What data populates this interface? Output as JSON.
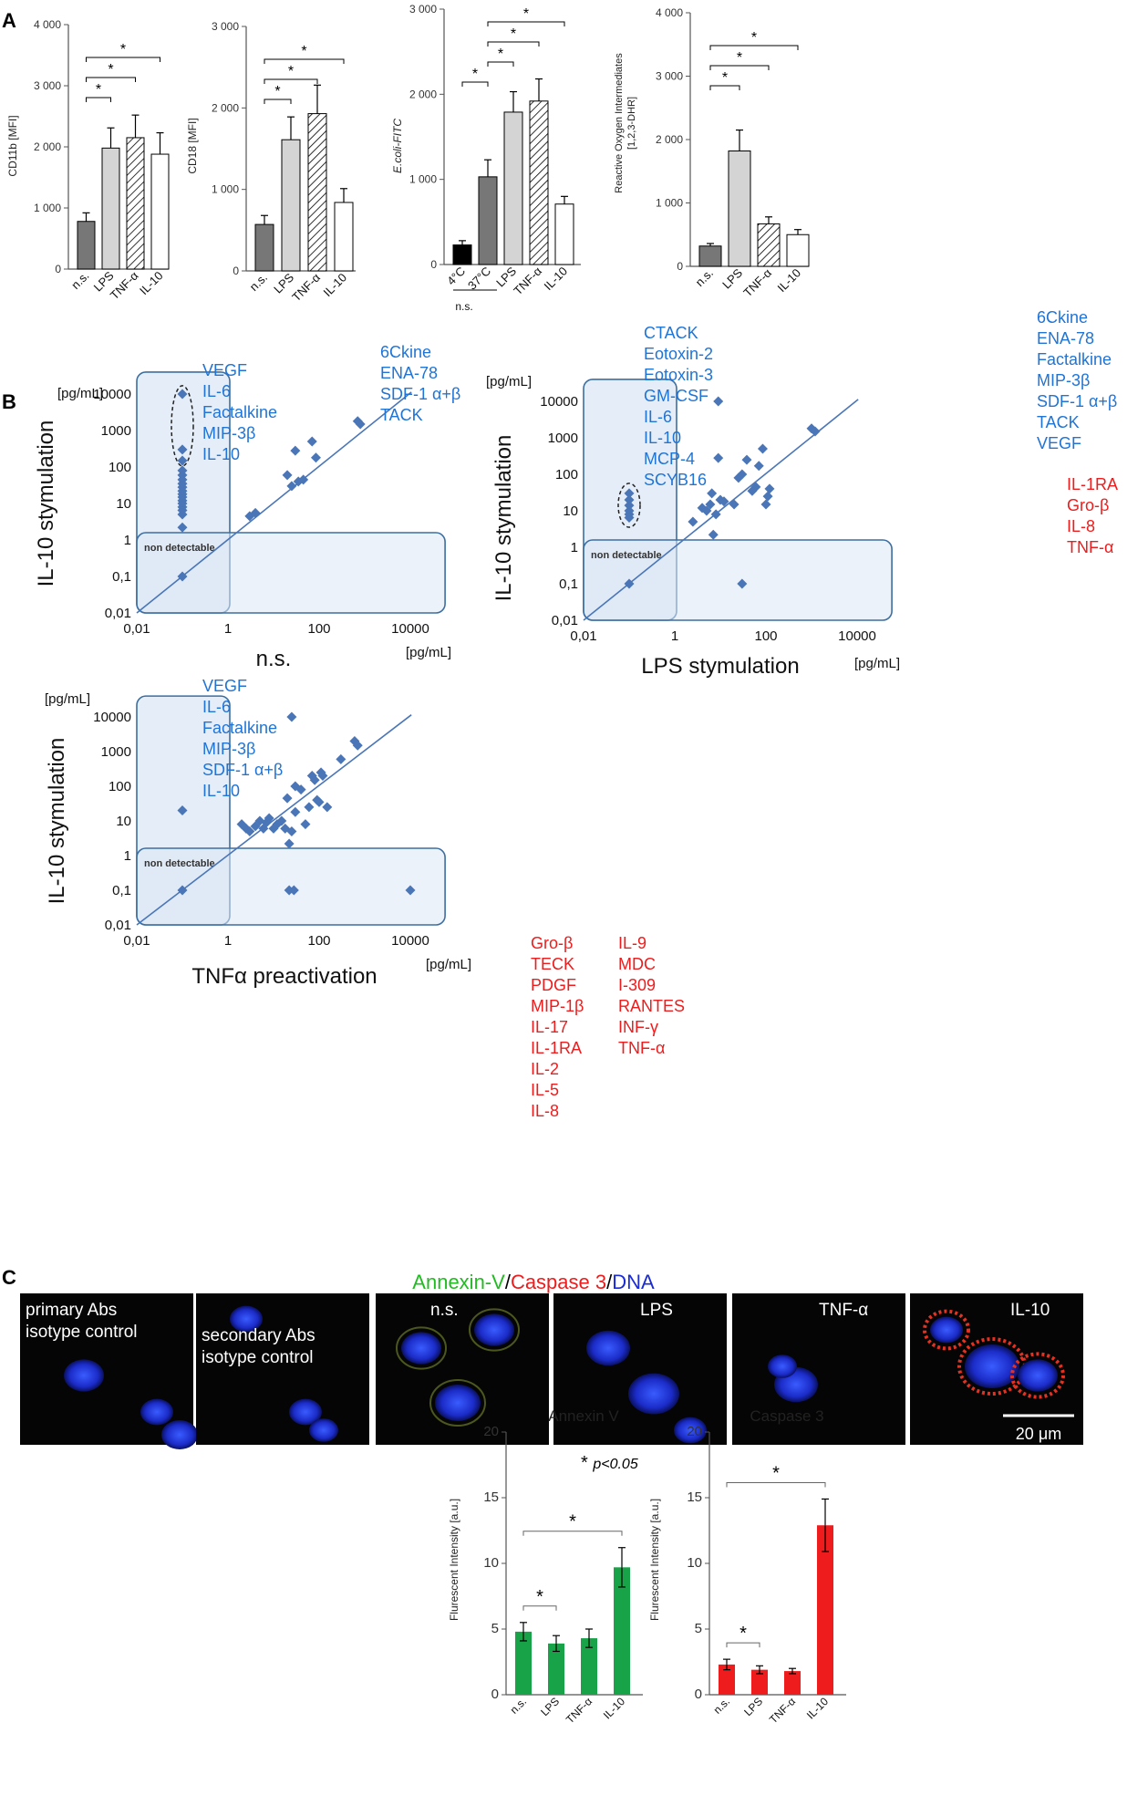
{
  "panel_labels": {
    "a": "A",
    "b": "B",
    "c": "C"
  },
  "chart_data": [
    {
      "id": "a1",
      "type": "bar",
      "ylabel": "CD11b [MFI]",
      "ylim": [
        0,
        4000
      ],
      "ticks": [
        0,
        1000,
        2000,
        3000,
        4000
      ],
      "tick_labels": [
        "0",
        "1 000",
        "2 000",
        "3 000",
        "4 000"
      ],
      "categories": [
        "n.s.",
        "LPS",
        "TNF-α",
        "IL-10"
      ],
      "values": [
        780,
        1980,
        2150,
        1880
      ],
      "errors": [
        140,
        330,
        370,
        350
      ],
      "fills": [
        "#777777",
        "#d4d4d4",
        "hatch",
        "#ffffff"
      ],
      "significance": [
        {
          "from": 0,
          "to": 1,
          "label": "*"
        },
        {
          "from": 0,
          "to": 2,
          "label": "*"
        },
        {
          "from": 0,
          "to": 3,
          "label": "*"
        }
      ]
    },
    {
      "id": "a2",
      "type": "bar",
      "ylabel": "CD18 [MFI]",
      "ylim": [
        0,
        3000
      ],
      "ticks": [
        0,
        1000,
        2000,
        3000
      ],
      "tick_labels": [
        "0",
        "1 000",
        "2 000",
        "3 000"
      ],
      "categories": [
        "n.s.",
        "LPS",
        "TNF-α",
        "IL-10"
      ],
      "values": [
        570,
        1610,
        1930,
        840
      ],
      "errors": [
        110,
        280,
        350,
        170
      ],
      "fills": [
        "#777777",
        "#d4d4d4",
        "hatch",
        "#ffffff"
      ],
      "significance": [
        {
          "from": 0,
          "to": 1,
          "label": "*"
        },
        {
          "from": 0,
          "to": 2,
          "label": "*"
        },
        {
          "from": 0,
          "to": 3,
          "label": "*"
        }
      ]
    },
    {
      "id": "a3",
      "type": "bar",
      "ylabel": "E.coli-FITC",
      "ylim": [
        0,
        3000
      ],
      "ticks": [
        0,
        1000,
        2000,
        3000
      ],
      "tick_labels": [
        "0",
        "1 000",
        "2 000",
        "3 000"
      ],
      "categories": [
        "4°C",
        "37°C",
        "LPS",
        "TNF-α",
        "IL-10"
      ],
      "group_label": "n.s.",
      "values": [
        230,
        1030,
        1790,
        1920,
        710
      ],
      "errors": [
        50,
        200,
        240,
        260,
        90
      ],
      "fills": [
        "#000000",
        "#777777",
        "#d4d4d4",
        "hatch",
        "#ffffff"
      ],
      "significance": [
        {
          "from": 0,
          "to": 1,
          "label": "*"
        },
        {
          "from": 1,
          "to": 2,
          "label": "*"
        },
        {
          "from": 1,
          "to": 3,
          "label": "*"
        },
        {
          "from": 1,
          "to": 4,
          "label": "*"
        }
      ]
    },
    {
      "id": "a4",
      "type": "bar",
      "ylabel": "Reactive Oxygen Intermediates",
      "ylabel2": "[1,2,3-DHR]",
      "ylim": [
        0,
        4000
      ],
      "ticks": [
        0,
        1000,
        2000,
        3000,
        4000
      ],
      "tick_labels": [
        "0",
        "1 000",
        "2 000",
        "3 000",
        "4 000"
      ],
      "categories": [
        "n.s.",
        "LPS",
        "TNF-α",
        "IL-10"
      ],
      "values": [
        320,
        1820,
        670,
        500
      ],
      "errors": [
        40,
        330,
        110,
        80
      ],
      "fills": [
        "#777777",
        "#d4d4d4",
        "hatch",
        "#ffffff"
      ],
      "significance": [
        {
          "from": 0,
          "to": 1,
          "label": "*"
        },
        {
          "from": 0,
          "to": 2,
          "label": "*"
        },
        {
          "from": 0,
          "to": 3,
          "label": "*"
        }
      ]
    },
    {
      "id": "b1",
      "type": "scatter",
      "scale": "log",
      "xlabel": "n.s.",
      "ylabel": "IL-10 stymulation",
      "xunit": "[pg/mL]",
      "yunit": "[pg/mL]",
      "ticks": [
        0.01,
        1,
        100,
        10000
      ],
      "yticks": [
        0.01,
        0.1,
        1,
        10,
        100,
        1000,
        10000
      ],
      "xtick_labels": [
        "0,01",
        "1",
        "100",
        "10000"
      ],
      "ytick_labels": [
        "0,01",
        "0,1",
        "1",
        "10",
        "100",
        "1000",
        "10000"
      ],
      "non_detectable": "non detectable",
      "points": [
        [
          0.1,
          10000
        ],
        [
          0.1,
          300
        ],
        [
          0.1,
          150
        ],
        [
          0.1,
          80
        ],
        [
          0.1,
          60
        ],
        [
          0.1,
          45
        ],
        [
          0.1,
          35
        ],
        [
          0.1,
          28
        ],
        [
          0.1,
          22
        ],
        [
          0.1,
          18
        ],
        [
          0.1,
          15
        ],
        [
          0.1,
          12
        ],
        [
          0.1,
          10
        ],
        [
          0.1,
          8
        ],
        [
          0.1,
          6.5
        ],
        [
          0.1,
          5
        ],
        [
          0.1,
          2.2
        ],
        [
          0.1,
          0.1
        ],
        [
          3,
          4.5
        ],
        [
          4,
          5.5
        ],
        [
          20,
          60
        ],
        [
          25,
          30
        ],
        [
          30,
          280
        ],
        [
          35,
          40
        ],
        [
          45,
          45
        ],
        [
          70,
          500
        ],
        [
          85,
          180
        ],
        [
          700,
          1800
        ],
        [
          800,
          1500
        ]
      ],
      "ellipse": {
        "x": 0.1,
        "ylow": 150,
        "yhigh": 12000
      },
      "annotations_left": [
        "VEGF",
        "IL-6",
        "Factalkine",
        "MIP-3β",
        "IL-10"
      ],
      "annotations_right": [
        "6Ckine",
        "ENA-78",
        "SDF-1 α+β",
        "TACK"
      ]
    },
    {
      "id": "b2",
      "type": "scatter",
      "scale": "log",
      "xlabel": "LPS stymulation",
      "ylabel": "IL-10 stymulation",
      "xunit": "[pg/mL]",
      "yunit": "[pg/mL]",
      "ticks": [
        0.01,
        1,
        100,
        10000
      ],
      "yticks": [
        0.01,
        0.1,
        1,
        10,
        100,
        1000,
        10000
      ],
      "xtick_labels": [
        "0,01",
        "1",
        "100",
        "10000"
      ],
      "ytick_labels": [
        "0,01",
        "0,1",
        "1",
        "10",
        "100",
        "1000",
        "10000"
      ],
      "non_detectable": "non detectable",
      "points": [
        [
          0.1,
          30
        ],
        [
          0.1,
          20
        ],
        [
          0.1,
          14
        ],
        [
          0.1,
          10
        ],
        [
          0.1,
          8
        ],
        [
          0.1,
          6.5
        ],
        [
          0.1,
          0.1
        ],
        [
          2.5,
          5
        ],
        [
          4,
          12
        ],
        [
          5,
          10
        ],
        [
          6,
          15
        ],
        [
          6.5,
          30
        ],
        [
          7,
          2.2
        ],
        [
          8,
          8
        ],
        [
          9,
          10000
        ],
        [
          9,
          280
        ],
        [
          10,
          20
        ],
        [
          12,
          18
        ],
        [
          20,
          15
        ],
        [
          25,
          80
        ],
        [
          30,
          100
        ],
        [
          38,
          250
        ],
        [
          50,
          35
        ],
        [
          60,
          45
        ],
        [
          70,
          170
        ],
        [
          85,
          500
        ],
        [
          100,
          15
        ],
        [
          110,
          25
        ],
        [
          120,
          40
        ],
        [
          30,
          0.1
        ],
        [
          1000,
          1800
        ],
        [
          1200,
          1500
        ]
      ],
      "ellipse": {
        "x": 0.1,
        "ylow": 5,
        "yhigh": 40
      },
      "annotations_left": [
        "CTACK",
        "Eotoxin-2",
        "Eotoxin-3",
        "GM-CSF",
        "IL-6",
        "IL-10",
        "MCP-4",
        "SCYB16"
      ],
      "annotations_right": [
        "6Ckine",
        "ENA-78",
        "Factalkine",
        "MIP-3β",
        "SDF-1 α+β",
        "TACK",
        "VEGF"
      ],
      "annotations_red": [
        "IL-1RA",
        "Gro-β",
        "IL-8",
        "TNF-α"
      ]
    },
    {
      "id": "b3",
      "type": "scatter",
      "scale": "log",
      "xlabel": "TNFα preactivation",
      "ylabel": "IL-10 stymulation",
      "xunit": "[pg/mL]",
      "yunit": "[pg/mL]",
      "ticks": [
        0.01,
        1,
        100,
        10000
      ],
      "yticks": [
        0.01,
        0.1,
        1,
        10,
        100,
        1000,
        10000
      ],
      "xtick_labels": [
        "0,01",
        "1",
        "100",
        "10000"
      ],
      "ytick_labels": [
        "0,01",
        "0,1",
        "1",
        "10",
        "100",
        "1000",
        "10000"
      ],
      "non_detectable": "non detectable",
      "points": [
        [
          0.1,
          20
        ],
        [
          0.1,
          0.1
        ],
        [
          2,
          8
        ],
        [
          2.5,
          6
        ],
        [
          3,
          5
        ],
        [
          4,
          7
        ],
        [
          5,
          10
        ],
        [
          6,
          6
        ],
        [
          7,
          9
        ],
        [
          8,
          12
        ],
        [
          10,
          6
        ],
        [
          12,
          8
        ],
        [
          15,
          10
        ],
        [
          18,
          6
        ],
        [
          20,
          45
        ],
        [
          22,
          2.2
        ],
        [
          25,
          10000
        ],
        [
          25,
          5
        ],
        [
          30,
          100
        ],
        [
          30,
          18
        ],
        [
          40,
          80
        ],
        [
          50,
          8
        ],
        [
          60,
          25
        ],
        [
          70,
          200
        ],
        [
          80,
          150
        ],
        [
          90,
          40
        ],
        [
          100,
          35
        ],
        [
          110,
          250
        ],
        [
          120,
          200
        ],
        [
          150,
          25
        ],
        [
          300,
          600
        ],
        [
          600,
          2000
        ],
        [
          700,
          1500
        ],
        [
          22,
          0.1
        ],
        [
          28,
          0.1
        ],
        [
          10000,
          0.1
        ]
      ],
      "annotations_left": [
        "VEGF",
        "IL-6",
        "Factalkine",
        "MIP-3β",
        "SDF-1 α+β",
        "IL-10"
      ],
      "annotations_red_col1": [
        "Gro-β",
        "TECK",
        "PDGF",
        "MIP-1β",
        "IL-17",
        "IL-1RA",
        "IL-2",
        "IL-5",
        "IL-8"
      ],
      "annotations_red_col2": [
        "IL-9",
        "MDC",
        "I-309",
        "RANTES",
        "INF-γ",
        "TNF-α"
      ]
    },
    {
      "id": "c1",
      "type": "bar",
      "title": "Annexin V",
      "ylabel": "Flurescent Intensity [a.u.]",
      "ylim": [
        0,
        20
      ],
      "ticks": [
        0,
        5,
        10,
        15,
        20
      ],
      "tick_labels": [
        "0",
        "5",
        "10",
        "15",
        "20"
      ],
      "categories": [
        "n.s.",
        "LPS",
        "TNF-α",
        "IL-10"
      ],
      "values": [
        4.8,
        3.9,
        4.3,
        9.7
      ],
      "errors": [
        0.7,
        0.6,
        0.7,
        1.5
      ],
      "fills": [
        "#18a348",
        "#18a348",
        "#18a348",
        "#18a348"
      ],
      "significance": [
        {
          "from": 0,
          "to": 1,
          "label": "*"
        },
        {
          "from": 0,
          "to": 3,
          "label": "*"
        }
      ],
      "legend_star": "*",
      "legend_text": "p<0.05"
    },
    {
      "id": "c2",
      "type": "bar",
      "title": "Caspase 3",
      "ylabel": "Flurescent Intensity [a.u.]",
      "ylim": [
        0,
        20
      ],
      "ticks": [
        0,
        5,
        10,
        15,
        20
      ],
      "tick_labels": [
        "0",
        "5",
        "10",
        "15",
        "20"
      ],
      "categories": [
        "n.s.",
        "LPS",
        "TNF-α",
        "IL-10"
      ],
      "values": [
        2.3,
        1.9,
        1.8,
        12.9
      ],
      "errors": [
        0.4,
        0.3,
        0.2,
        2.0
      ],
      "fills": [
        "#ee1c1c",
        "#ee1c1c",
        "#ee1c1c",
        "#ee1c1c"
      ],
      "significance": [
        {
          "from": 0,
          "to": 1,
          "label": "*"
        },
        {
          "from": 0,
          "to": 3,
          "label": "*"
        }
      ]
    }
  ],
  "micrographs": {
    "title_parts": [
      {
        "text": "Annexin-V",
        "color": "#22bb22"
      },
      {
        "text": "/",
        "color": "#000000"
      },
      {
        "text": "Caspase 3",
        "color": "#ee1c1c"
      },
      {
        "text": "/",
        "color": "#000000"
      },
      {
        "text": "DNA",
        "color": "#1a2bd8"
      }
    ],
    "images": [
      {
        "label": "primary Abs isotype control",
        "lines": [
          "primary Abs",
          "isotype control"
        ]
      },
      {
        "label": "secondary Abs isotype control",
        "lines": [
          "secondary Abs",
          "isotype control"
        ]
      },
      {
        "label": "n.s.",
        "lines": [
          "n.s."
        ]
      },
      {
        "label": "LPS",
        "lines": [
          "LPS"
        ]
      },
      {
        "label": "TNF-α",
        "lines": [
          "TNF-α"
        ]
      },
      {
        "label": "IL-10",
        "lines": [
          "IL-10"
        ]
      }
    ],
    "scale_bar": "20 μm"
  },
  "colors": {
    "blue_text": "#1f74d6",
    "red_text": "#ee1c1c",
    "scatter_point": "#4a76b8",
    "box_fill": "#dce8f5",
    "box_stroke": "#3c6ea0"
  }
}
